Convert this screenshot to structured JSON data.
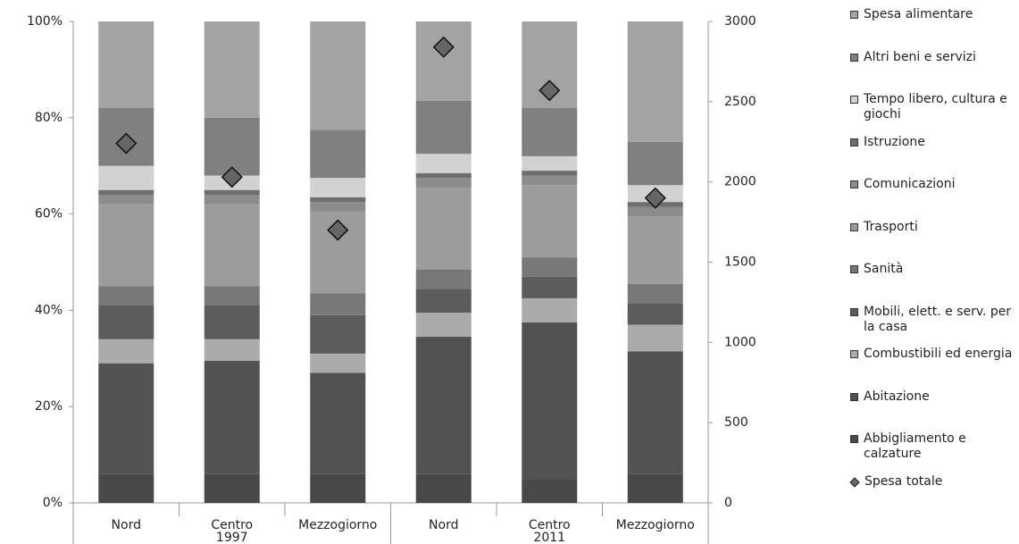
{
  "chart_data": {
    "type": "bar",
    "stacked": true,
    "categories": [
      "Nord",
      "Centro",
      "Mezzogiorno",
      "Nord",
      "Centro",
      "Mezzogiorno"
    ],
    "groups": [
      "1997",
      "2011"
    ],
    "series": [
      {
        "name": "Spesa alimentare",
        "color": "#a3a3a3",
        "values": [
          18,
          20,
          22.5,
          16.5,
          18,
          25
        ]
      },
      {
        "name": "Altri beni e servizi",
        "color": "#808080",
        "values": [
          12,
          12,
          10,
          11,
          10,
          9
        ]
      },
      {
        "name": "Tempo libero, cultura e giochi",
        "color": "#d2d2d2",
        "values": [
          5,
          3,
          4,
          4,
          3,
          3.5
        ]
      },
      {
        "name": "Istruzione",
        "color": "#6e6e6e",
        "values": [
          1,
          1,
          1,
          1,
          1,
          1
        ]
      },
      {
        "name": "Comunicazioni",
        "color": "#8c8c8c",
        "values": [
          2,
          2,
          2,
          2,
          2,
          2
        ]
      },
      {
        "name": "Trasporti",
        "color": "#9c9c9c",
        "values": [
          17,
          17,
          17,
          17,
          15,
          14
        ]
      },
      {
        "name": "Sanità",
        "color": "#787878",
        "values": [
          4,
          4,
          4.5,
          4,
          4,
          4
        ]
      },
      {
        "name": "Mobili, elett. e serv. per la casa",
        "color": "#5c5c5c",
        "values": [
          7,
          7,
          8,
          5,
          4.5,
          4.5
        ]
      },
      {
        "name": "Combustibili ed energia",
        "color": "#ababab",
        "values": [
          5,
          4.5,
          4,
          5,
          5,
          5.5
        ]
      },
      {
        "name": "Abitazione",
        "color": "#525252",
        "values": [
          23,
          23.5,
          21,
          28.5,
          32.5,
          25.5
        ]
      },
      {
        "name": "Abbigliamento e calzature",
        "color": "#484848",
        "values": [
          6,
          6,
          6,
          6,
          5,
          6
        ]
      },
      {
        "name": "Spesa totale",
        "color": "#666666",
        "axis": "y2",
        "marker": "diamond",
        "values": [
          2240,
          2030,
          1700,
          2840,
          2570,
          1900
        ]
      }
    ],
    "ylim": [
      0,
      100
    ],
    "yticks": [
      {
        "value": 0,
        "label": "0%"
      },
      {
        "value": 20,
        "label": "20%"
      },
      {
        "value": 40,
        "label": "40%"
      },
      {
        "value": 60,
        "label": "60%"
      },
      {
        "value": 80,
        "label": "80%"
      },
      {
        "value": 100,
        "label": "100%"
      }
    ],
    "y2lim": [
      0,
      3000
    ],
    "y2ticks": [
      0,
      500,
      1000,
      1500,
      2000,
      2500,
      3000
    ],
    "legend": "right"
  }
}
